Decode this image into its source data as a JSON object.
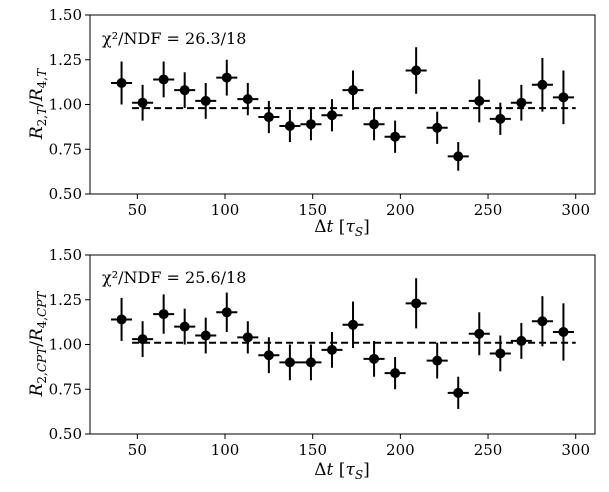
{
  "chart_data": [
    {
      "type": "scatter",
      "annotation": "χ²/NDF = 26.3/18",
      "xlabel": "Δt [τS]",
      "ylabel": "R2,T/R4,T",
      "xlim": [
        23,
        311
      ],
      "ylim": [
        0.5,
        1.5
      ],
      "xticks": [
        50,
        100,
        150,
        200,
        250,
        300
      ],
      "yticks": [
        0.5,
        0.75,
        1.0,
        1.25,
        1.5
      ],
      "x_halfwidth": 6,
      "grid": false,
      "fit_line": {
        "y": 0.98,
        "x_range": [
          47,
          300
        ],
        "style": "dashed"
      },
      "series": [
        {
          "x": [
            41,
            53,
            65,
            77,
            89,
            101,
            113,
            125,
            137,
            149,
            161,
            173,
            185,
            197,
            209,
            221,
            233,
            245,
            257,
            269,
            281,
            293
          ],
          "y": [
            1.12,
            1.01,
            1.14,
            1.08,
            1.02,
            1.15,
            1.03,
            0.93,
            0.88,
            0.89,
            0.94,
            1.08,
            0.89,
            0.82,
            1.19,
            0.87,
            0.71,
            1.02,
            0.92,
            1.01,
            1.11,
            1.04
          ],
          "yerr": [
            0.12,
            0.1,
            0.1,
            0.1,
            0.1,
            0.1,
            0.09,
            0.09,
            0.09,
            0.09,
            0.09,
            0.11,
            0.09,
            0.09,
            0.13,
            0.09,
            0.08,
            0.12,
            0.09,
            0.1,
            0.15,
            0.15
          ]
        }
      ]
    },
    {
      "type": "scatter",
      "annotation": "χ²/NDF = 25.6/18",
      "xlabel": "Δt [τS]",
      "ylabel": "R2,CPT/R4,CPT",
      "xlim": [
        23,
        311
      ],
      "ylim": [
        0.5,
        1.5
      ],
      "xticks": [
        50,
        100,
        150,
        200,
        250,
        300
      ],
      "yticks": [
        0.5,
        0.75,
        1.0,
        1.25,
        1.5
      ],
      "x_halfwidth": 6,
      "grid": false,
      "fit_line": {
        "y": 1.01,
        "x_range": [
          47,
          300
        ],
        "style": "dashed"
      },
      "series": [
        {
          "x": [
            41,
            53,
            65,
            77,
            89,
            101,
            113,
            125,
            137,
            149,
            161,
            173,
            185,
            197,
            209,
            221,
            233,
            245,
            257,
            269,
            281,
            293
          ],
          "y": [
            1.14,
            1.03,
            1.17,
            1.1,
            1.05,
            1.18,
            1.04,
            0.94,
            0.9,
            0.9,
            0.97,
            1.11,
            0.92,
            0.84,
            1.23,
            0.91,
            0.73,
            1.06,
            0.95,
            1.02,
            1.13,
            1.07
          ],
          "yerr": [
            0.12,
            0.1,
            0.11,
            0.1,
            0.1,
            0.11,
            0.09,
            0.1,
            0.1,
            0.1,
            0.1,
            0.13,
            0.1,
            0.09,
            0.14,
            0.1,
            0.09,
            0.12,
            0.1,
            0.1,
            0.14,
            0.16
          ]
        }
      ]
    }
  ]
}
